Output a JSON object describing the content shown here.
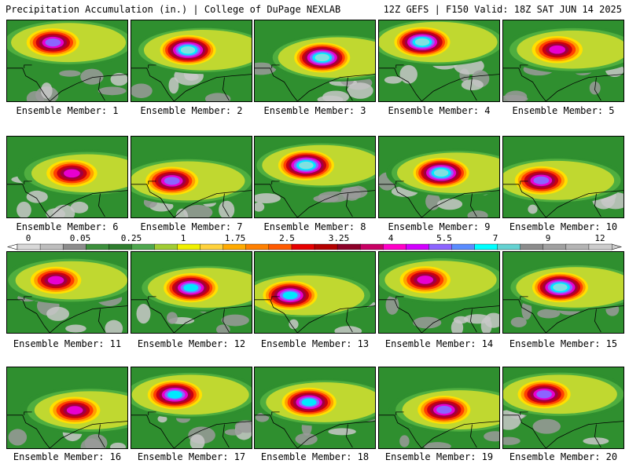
{
  "header": {
    "left": "Precipitation Accumulation (in.) | College of DuPage NEXLAB",
    "right": "12Z GEFS | F150 Valid: 18Z SAT JUN 14 2025"
  },
  "members": [
    {
      "label": "Ensemble Member: 1",
      "peak": 0.7
    },
    {
      "label": "Ensemble Member: 2",
      "peak": 0.85
    },
    {
      "label": "Ensemble Member: 3",
      "peak": 0.9
    },
    {
      "label": "Ensemble Member: 4",
      "peak": 0.85
    },
    {
      "label": "Ensemble Member: 5",
      "peak": 0.6
    },
    {
      "label": "Ensemble Member: 6",
      "peak": 0.6
    },
    {
      "label": "Ensemble Member: 7",
      "peak": 0.7
    },
    {
      "label": "Ensemble Member: 8",
      "peak": 0.85
    },
    {
      "label": "Ensemble Member: 9",
      "peak": 0.85
    },
    {
      "label": "Ensemble Member: 10",
      "peak": 0.7
    },
    {
      "label": "Ensemble Member: 11",
      "peak": 0.6
    },
    {
      "label": "Ensemble Member: 12",
      "peak": 0.75
    },
    {
      "label": "Ensemble Member: 13",
      "peak": 0.8
    },
    {
      "label": "Ensemble Member: 14",
      "peak": 0.55
    },
    {
      "label": "Ensemble Member: 15",
      "peak": 0.85
    },
    {
      "label": "Ensemble Member: 16",
      "peak": 0.6
    },
    {
      "label": "Ensemble Member: 17",
      "peak": 0.8
    },
    {
      "label": "Ensemble Member: 18",
      "peak": 0.75
    },
    {
      "label": "Ensemble Member: 19",
      "peak": 0.65
    },
    {
      "label": "Ensemble Member: 20",
      "peak": 0.65
    }
  ],
  "colorbar": {
    "tick_labels": [
      "0",
      "0.05",
      "0.25",
      "1",
      "1.75",
      "2.5",
      "3.25",
      "4",
      "5.5",
      "7",
      "9",
      "12"
    ],
    "colors": [
      "#d8d8d8",
      "#bdbdbd",
      "#8c8c8c",
      "#3c8f3c",
      "#2e7d2e",
      "#4ea74e",
      "#a0cc33",
      "#f0f000",
      "#ffd23c",
      "#ffaa00",
      "#ff8000",
      "#ff5a00",
      "#e60000",
      "#b40000",
      "#8c0028",
      "#c80064",
      "#ff00c8",
      "#d200ff",
      "#8c64ff",
      "#5a8cff",
      "#00ffff",
      "#64d2d2",
      "#8c8c8c",
      "#a0a0a0",
      "#b4b4b4",
      "#cccccc"
    ]
  },
  "precip_ramp": [
    "#c8c8c8",
    "#9a9a9a",
    "#2f8f2f",
    "#4fae3f",
    "#c0d830",
    "#ffe000",
    "#ffa000",
    "#ff4000",
    "#c80010",
    "#a00040",
    "#e800d0",
    "#8c64ff",
    "#00e8ff",
    "#80e0e0"
  ]
}
